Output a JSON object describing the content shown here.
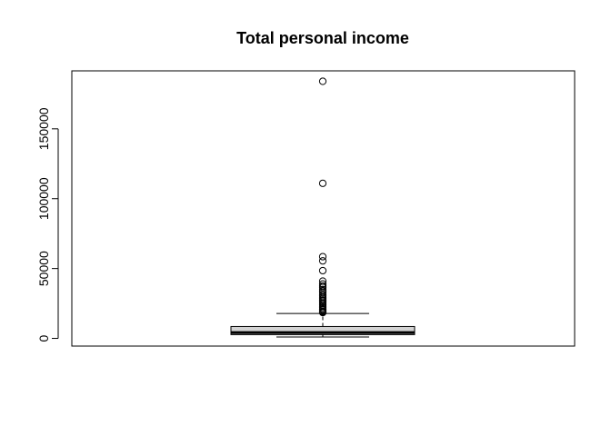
{
  "chart_data": {
    "type": "boxplot",
    "title": "Total personal income",
    "xlabel": "",
    "ylabel": "",
    "ylim": [
      -5500,
      191500
    ],
    "yticks": [
      0,
      50000,
      100000,
      150000
    ],
    "yticklabels": [
      "0",
      "50000",
      "100000",
      "150000"
    ],
    "box": {
      "lower_whisker": 1000,
      "q1": 2700,
      "median": 4200,
      "q3": 8500,
      "upper_whisker": 17800
    },
    "outliers": [
      184000,
      111000,
      58500,
      55500,
      48500,
      41000,
      39000,
      37500,
      36500,
      35000,
      34000,
      33000,
      31500,
      30500,
      29500,
      28500,
      27500,
      27000,
      26000,
      25000,
      24000,
      23000,
      22000,
      21000,
      20500,
      19500,
      19000,
      18500
    ],
    "grid": false,
    "colors": {
      "box_fill": "#d3d3d3",
      "stroke": "#000000"
    }
  }
}
